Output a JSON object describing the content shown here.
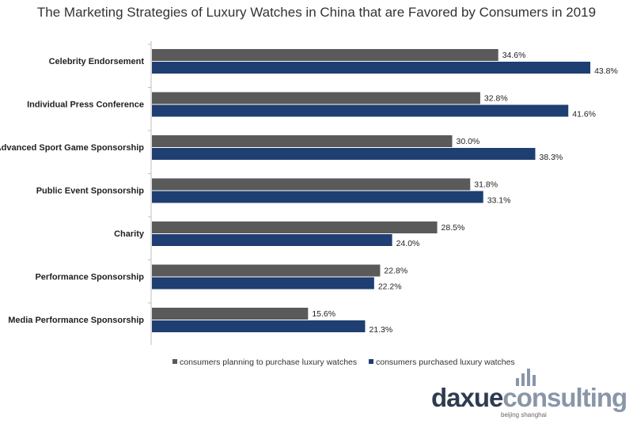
{
  "chart_data": {
    "type": "bar",
    "orientation": "horizontal",
    "title": "The Marketing Strategies of Luxury Watches in China that are Favored by Consumers in 2019",
    "categories": [
      "Celebrity Endorsement",
      "Individual Press Conference",
      "Advanced Sport Game Sponsorship",
      "Public Event Sponsorship",
      "Charity",
      "Performance Sponsorship",
      "Media Performance Sponsorship"
    ],
    "series": [
      {
        "name": "consumers planning to purchase luxury watches",
        "color": "#5a5a5a",
        "values": [
          34.6,
          32.8,
          30.0,
          31.8,
          28.5,
          22.8,
          15.6
        ],
        "labels": [
          "34.6%",
          "32.8%",
          "30.0%",
          "31.8%",
          "28.5%",
          "22.8%",
          "15.6%"
        ]
      },
      {
        "name": "consumers purchased luxury watches",
        "color": "#1f3e72",
        "values": [
          43.8,
          41.6,
          38.3,
          33.1,
          24.0,
          22.2,
          21.3
        ],
        "labels": [
          "43.8%",
          "41.6%",
          "38.3%",
          "33.1%",
          "24.0%",
          "22.2%",
          "21.3%"
        ]
      }
    ],
    "xlim": [
      0,
      50
    ],
    "unit": "%",
    "grid": false,
    "legend_position": "bottom"
  },
  "logo": {
    "part1": "daxue",
    "part2": "consulting",
    "subtitle": "beijing shanghai",
    "colors": {
      "dark": "#2f3b4f",
      "light": "#8a96a8"
    }
  }
}
